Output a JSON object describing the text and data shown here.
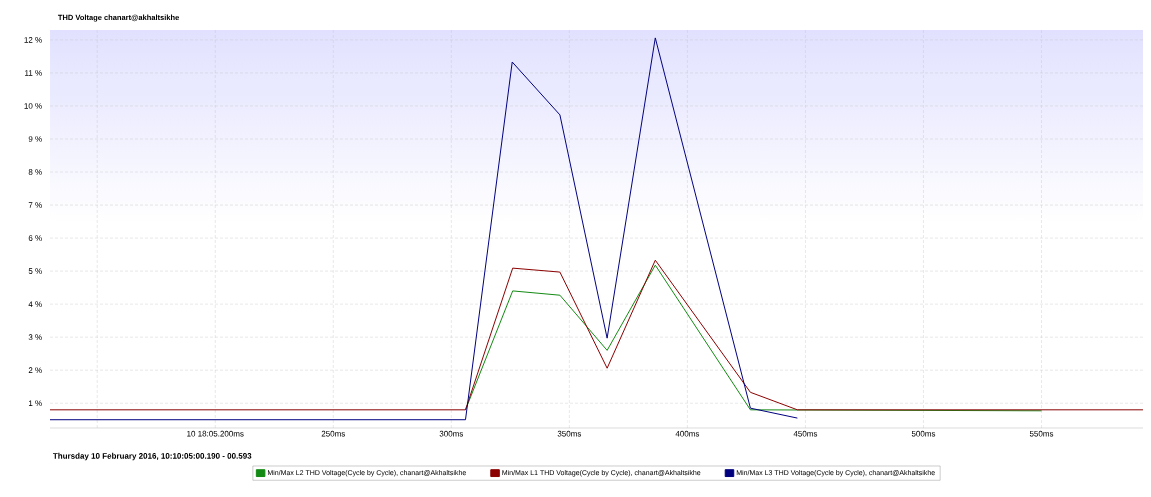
{
  "chart_data": {
    "type": "line",
    "title": "THD Voltage chanart@akhaltsikhe",
    "xlabel": "Thursday 10 February 2016, 10:10:05:00.190 - 00.593",
    "xlim": [
      130,
      593
    ],
    "ylim": [
      0.25,
      12.3
    ],
    "xticks": [
      {
        "value": 150,
        "label": null
      },
      {
        "value": 200,
        "label": "10 18:05.200ms"
      },
      {
        "value": 250,
        "label": "250ms"
      },
      {
        "value": 300,
        "label": "300ms"
      },
      {
        "value": 350,
        "label": "350ms"
      },
      {
        "value": 400,
        "label": "400ms"
      },
      {
        "value": 450,
        "label": "450ms"
      },
      {
        "value": 500,
        "label": "500ms"
      },
      {
        "value": 550,
        "label": "550ms"
      }
    ],
    "yticks": [
      {
        "value": 1,
        "label": "1 %"
      },
      {
        "value": 2,
        "label": "2 %"
      },
      {
        "value": 3,
        "label": "3 %"
      },
      {
        "value": 4,
        "label": "4 %"
      },
      {
        "value": 5,
        "label": "5 %"
      },
      {
        "value": 6,
        "label": "6 %"
      },
      {
        "value": 7,
        "label": "7 %"
      },
      {
        "value": 8,
        "label": "8 %"
      },
      {
        "value": 9,
        "label": "9 %"
      },
      {
        "value": 10,
        "label": "10 %"
      },
      {
        "value": 11,
        "label": "11 %"
      },
      {
        "value": 12,
        "label": "12 %"
      }
    ],
    "grid": true,
    "legend": "bottom",
    "marker": "none",
    "line_style": "solid",
    "series": [
      {
        "name": "Min/Max L2 THD Voltage(Cycle by Cycle), chanart@Akhaltsikhe",
        "color": "#138a13",
        "x": [
          306,
          326,
          346,
          366,
          386.4,
          426.7,
          550
        ],
        "values": [
          0.8,
          4.4,
          4.27,
          2.6,
          5.18,
          0.8,
          0.77
        ]
      },
      {
        "name": "Min/Max L1 THD Voltage(Cycle by Cycle), chanart@Akhaltsikhe",
        "color": "#8b0000",
        "x": [
          130,
          306,
          326,
          346,
          366,
          386.4,
          426.7,
          446.6,
          593
        ],
        "values": [
          0.8,
          0.8,
          5.09,
          4.97,
          2.06,
          5.33,
          1.33,
          0.8,
          0.8
        ]
      },
      {
        "name": "Min/Max L3 THD Voltage(Cycle by Cycle), chanart@Akhaltsikhe",
        "color": "#00007f",
        "x": [
          130,
          306,
          325.8,
          346,
          366,
          386.4,
          426.7,
          446.6
        ],
        "values": [
          0.5,
          0.5,
          11.33,
          9.73,
          2.97,
          12.06,
          0.85,
          0.55
        ]
      }
    ]
  }
}
